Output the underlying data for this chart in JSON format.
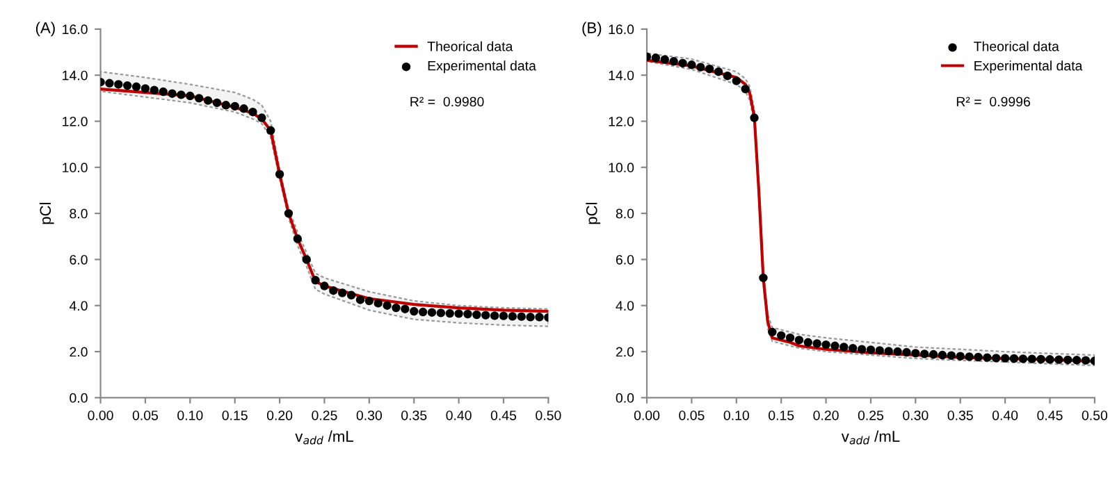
{
  "chart_data": [
    {
      "type": "line",
      "title": "(A)",
      "xlabel": "v$_{add}$ /mL",
      "ylabel": "pCl",
      "annotations": [
        "R² =  0.9980"
      ],
      "legend": "top right",
      "grid": false,
      "xlim": [
        0,
        0.5
      ],
      "ylim": [
        0,
        16
      ],
      "xticks": [
        {
          "value": 0,
          "label": "0.00"
        },
        {
          "value": 0.05,
          "label": "0.05"
        },
        {
          "value": 0.1,
          "label": "0.10"
        },
        {
          "value": 0.15,
          "label": "0.15"
        },
        {
          "value": 0.2,
          "label": "0.20"
        },
        {
          "value": 0.25,
          "label": "0.25"
        },
        {
          "value": 0.3,
          "label": "0.30"
        },
        {
          "value": 0.35,
          "label": "0.35"
        },
        {
          "value": 0.4,
          "label": "0.40"
        },
        {
          "value": 0.45,
          "label": "0.45"
        },
        {
          "value": 0.5,
          "label": "0.50"
        }
      ],
      "yticks": [
        {
          "value": 0,
          "label": "0.0"
        },
        {
          "value": 2,
          "label": "2.0"
        },
        {
          "value": 4,
          "label": "4.0"
        },
        {
          "value": 6,
          "label": "6.0"
        },
        {
          "value": 8,
          "label": "8.0"
        },
        {
          "value": 10,
          "label": "10.0"
        },
        {
          "value": 12,
          "label": "12.0"
        },
        {
          "value": 14,
          "label": "14.0"
        },
        {
          "value": 16,
          "label": "16.0"
        }
      ],
      "series": [
        {
          "name": "Theorical data",
          "type": "line",
          "color": "#c00000",
          "line_style": "solid",
          "x": [
            0,
            0.05,
            0.1,
            0.15,
            0.17,
            0.18,
            0.19,
            0.2,
            0.21,
            0.22,
            0.23,
            0.24,
            0.25,
            0.3,
            0.35,
            0.4,
            0.45,
            0.5
          ],
          "values": [
            13.4,
            13.25,
            13.1,
            12.6,
            12.35,
            12.1,
            11.6,
            9.7,
            8.0,
            6.9,
            6.0,
            5.05,
            4.85,
            4.3,
            4.05,
            3.9,
            3.8,
            3.75
          ],
          "upper": [
            14.15,
            13.9,
            13.6,
            13.25,
            12.95,
            12.7,
            12.0,
            9.9,
            8.2,
            7.2,
            6.3,
            5.4,
            5.2,
            4.6,
            4.2,
            4.0,
            3.9,
            3.85
          ],
          "lower": [
            13.3,
            13.05,
            12.8,
            12.4,
            12.1,
            11.9,
            11.3,
            9.5,
            7.8,
            6.6,
            5.7,
            4.7,
            4.5,
            3.8,
            3.4,
            3.25,
            3.15,
            3.1
          ]
        },
        {
          "name": "Experimental data",
          "type": "scatter",
          "color": "#000000",
          "marker": "circle",
          "x": [
            0,
            0.01,
            0.02,
            0.03,
            0.04,
            0.05,
            0.06,
            0.07,
            0.08,
            0.09,
            0.1,
            0.11,
            0.12,
            0.13,
            0.14,
            0.15,
            0.16,
            0.17,
            0.18,
            0.19,
            0.2,
            0.21,
            0.22,
            0.23,
            0.24,
            0.25,
            0.26,
            0.27,
            0.28,
            0.29,
            0.3,
            0.31,
            0.32,
            0.33,
            0.34,
            0.35,
            0.36,
            0.37,
            0.38,
            0.39,
            0.4,
            0.41,
            0.42,
            0.43,
            0.44,
            0.45,
            0.46,
            0.47,
            0.48,
            0.49,
            0.5
          ],
          "values": [
            13.7,
            13.65,
            13.6,
            13.55,
            13.5,
            13.42,
            13.35,
            13.28,
            13.2,
            13.15,
            13.1,
            13.0,
            12.9,
            12.8,
            12.7,
            12.65,
            12.55,
            12.4,
            12.15,
            11.6,
            9.7,
            8.0,
            6.9,
            6.0,
            5.1,
            4.85,
            4.65,
            4.55,
            4.45,
            4.25,
            4.2,
            4.1,
            4.0,
            3.9,
            3.85,
            3.75,
            3.72,
            3.7,
            3.68,
            3.66,
            3.65,
            3.63,
            3.6,
            3.58,
            3.56,
            3.55,
            3.53,
            3.52,
            3.5,
            3.5,
            3.48
          ]
        }
      ]
    },
    {
      "type": "line",
      "title": "(B)",
      "xlabel": "v$_{add}$ /mL",
      "ylabel": "pCl",
      "annotations": [
        "R² =  0.9996"
      ],
      "legend": "top right",
      "grid": false,
      "xlim": [
        0,
        0.5
      ],
      "ylim": [
        0,
        16
      ],
      "xticks": [
        {
          "value": 0,
          "label": "0.00"
        },
        {
          "value": 0.05,
          "label": "0.05"
        },
        {
          "value": 0.1,
          "label": "0.10"
        },
        {
          "value": 0.15,
          "label": "0.15"
        },
        {
          "value": 0.2,
          "label": "0.20"
        },
        {
          "value": 0.25,
          "label": "0.25"
        },
        {
          "value": 0.3,
          "label": "0.30"
        },
        {
          "value": 0.35,
          "label": "0.35"
        },
        {
          "value": 0.4,
          "label": "0.40"
        },
        {
          "value": 0.45,
          "label": "0.45"
        },
        {
          "value": 0.5,
          "label": "0.50"
        }
      ],
      "yticks": [
        {
          "value": 0,
          "label": "0.0"
        },
        {
          "value": 2,
          "label": "2.0"
        },
        {
          "value": 4,
          "label": "4.0"
        },
        {
          "value": 6,
          "label": "6.0"
        },
        {
          "value": 8,
          "label": "8.0"
        },
        {
          "value": 10,
          "label": "10.0"
        },
        {
          "value": 12,
          "label": "12.0"
        },
        {
          "value": 14,
          "label": "14.0"
        },
        {
          "value": 16,
          "label": "16.0"
        }
      ],
      "series": [
        {
          "name": "Theorical data",
          "type": "scatter",
          "color": "#000000",
          "marker": "circle",
          "x": [
            0,
            0.01,
            0.02,
            0.03,
            0.04,
            0.05,
            0.06,
            0.07,
            0.08,
            0.09,
            0.1,
            0.11,
            0.12,
            0.13,
            0.14,
            0.15,
            0.16,
            0.17,
            0.18,
            0.19,
            0.2,
            0.21,
            0.22,
            0.23,
            0.24,
            0.25,
            0.26,
            0.27,
            0.28,
            0.29,
            0.3,
            0.31,
            0.32,
            0.33,
            0.34,
            0.35,
            0.36,
            0.37,
            0.38,
            0.39,
            0.4,
            0.41,
            0.42,
            0.43,
            0.44,
            0.45,
            0.46,
            0.47,
            0.48,
            0.49,
            0.5
          ],
          "values": [
            14.8,
            14.75,
            14.68,
            14.6,
            14.52,
            14.45,
            14.35,
            14.27,
            14.15,
            13.97,
            13.75,
            13.4,
            12.15,
            5.2,
            2.85,
            2.7,
            2.6,
            2.5,
            2.4,
            2.35,
            2.3,
            2.25,
            2.2,
            2.15,
            2.1,
            2.08,
            2.05,
            2.02,
            2.0,
            1.97,
            1.93,
            1.9,
            1.88,
            1.85,
            1.83,
            1.8,
            1.78,
            1.76,
            1.74,
            1.72,
            1.71,
            1.7,
            1.69,
            1.68,
            1.67,
            1.66,
            1.65,
            1.64,
            1.63,
            1.62,
            1.6
          ]
        },
        {
          "name": "Experimental data",
          "type": "line",
          "color": "#c00000",
          "line_style": "solid",
          "x": [
            0,
            0.05,
            0.1,
            0.11,
            0.115,
            0.12,
            0.125,
            0.13,
            0.135,
            0.14,
            0.15,
            0.16,
            0.17,
            0.2,
            0.25,
            0.3,
            0.35,
            0.4,
            0.45,
            0.5
          ],
          "values": [
            14.65,
            14.4,
            13.9,
            13.6,
            13.2,
            12.2,
            9.0,
            5.2,
            3.3,
            2.6,
            2.5,
            2.4,
            2.25,
            2.1,
            1.95,
            1.85,
            1.75,
            1.7,
            1.65,
            1.58
          ],
          "upper": [
            14.95,
            14.7,
            14.15,
            13.85,
            13.5,
            12.5,
            9.3,
            5.5,
            3.6,
            3.05,
            2.95,
            2.85,
            2.75,
            2.6,
            2.4,
            2.2,
            2.1,
            2.0,
            1.92,
            1.85
          ],
          "lower": [
            14.6,
            14.25,
            13.6,
            13.3,
            12.9,
            11.9,
            8.7,
            4.9,
            3.0,
            2.45,
            2.35,
            2.25,
            2.15,
            2.0,
            1.85,
            1.7,
            1.62,
            1.55,
            1.47,
            1.4
          ]
        }
      ]
    }
  ]
}
